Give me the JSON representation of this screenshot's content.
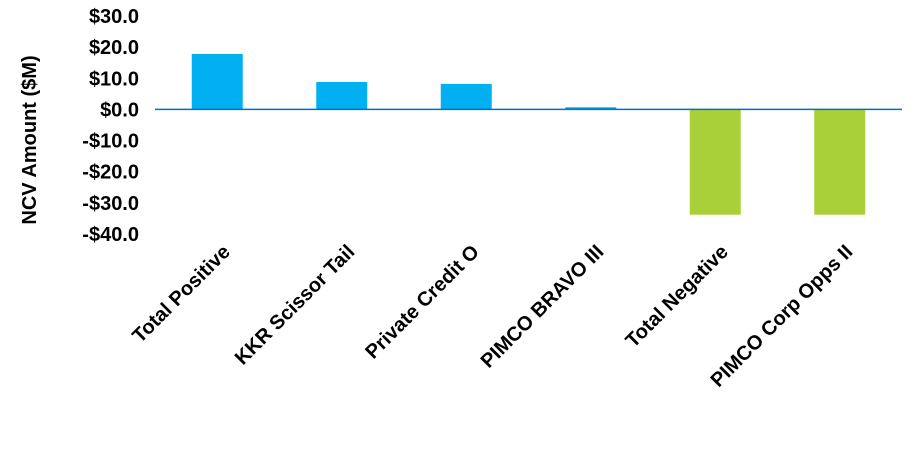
{
  "chart_data": {
    "type": "bar",
    "categories": [
      "Total Positive",
      "KKR Scissor Tail",
      "Private Credit O",
      "PIMCO BRAVO III",
      "Total Negative",
      "PIMCO Corp Opps II"
    ],
    "values": [
      17.8,
      8.8,
      8.2,
      0.7,
      -33.8,
      -33.8
    ],
    "ylabel": "NCV Amount ($M)",
    "ylim": [
      -40,
      30
    ],
    "yticks": [
      30,
      20,
      10,
      0,
      -10,
      -20,
      -30,
      -40
    ],
    "ytick_labels": [
      "$30.0",
      "$20.0",
      "$10.0",
      "$0.0",
      "-$10.0",
      "-$20.0",
      "-$30.0",
      "-$40.0"
    ],
    "grid": false,
    "colors": {
      "positive": "#00b0f0",
      "negative": "#a9d039",
      "baseline": "#0070c0"
    }
  }
}
